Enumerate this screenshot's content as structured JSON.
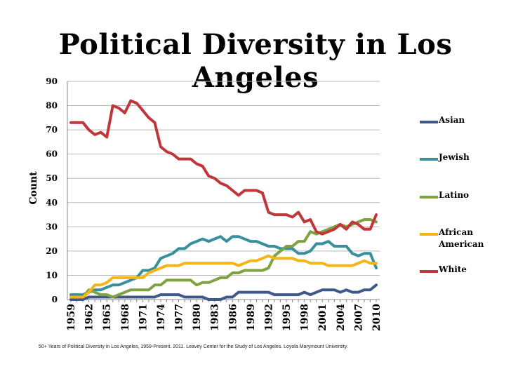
{
  "chart_data": {
    "type": "line",
    "title": "Political Diversity in Los Angeles",
    "xlabel": "",
    "ylabel": "Count",
    "ylim": [
      0,
      90
    ],
    "yticks": [
      0,
      10,
      20,
      30,
      40,
      50,
      60,
      70,
      80,
      90
    ],
    "x": [
      1959,
      1960,
      1961,
      1962,
      1963,
      1964,
      1965,
      1966,
      1967,
      1968,
      1969,
      1970,
      1971,
      1972,
      1973,
      1974,
      1975,
      1976,
      1977,
      1978,
      1979,
      1980,
      1981,
      1982,
      1983,
      1984,
      1985,
      1986,
      1987,
      1988,
      1989,
      1990,
      1991,
      1992,
      1993,
      1994,
      1995,
      1996,
      1997,
      1998,
      1999,
      2000,
      2001,
      2002,
      2003,
      2004,
      2005,
      2006,
      2007,
      2008,
      2009,
      2010
    ],
    "xtick_labels": [
      "1959",
      "1962",
      "1965",
      "1968",
      "1971",
      "1974",
      "1977",
      "1980",
      "1983",
      "1986",
      "1989",
      "1992",
      "1995",
      "1998",
      "2001",
      "2004",
      "2007",
      "2010"
    ],
    "grid": true,
    "legend_position": "right",
    "series": [
      {
        "name": "Asian",
        "color": "#3f5a8a",
        "values": [
          0,
          0,
          0,
          1,
          1,
          1,
          1,
          1,
          1,
          1,
          1,
          1,
          1,
          1,
          1,
          2,
          2,
          2,
          2,
          1,
          1,
          1,
          1,
          0,
          0,
          0,
          1,
          1,
          3,
          3,
          3,
          3,
          3,
          3,
          2,
          2,
          2,
          2,
          2,
          3,
          2,
          3,
          4,
          4,
          4,
          3,
          4,
          3,
          3,
          4,
          4,
          6
        ]
      },
      {
        "name": "Jewish",
        "color": "#3a8f9c",
        "values": [
          2,
          2,
          2,
          3,
          4,
          4,
          5,
          6,
          6,
          7,
          8,
          9,
          12,
          12,
          13,
          17,
          18,
          19,
          21,
          21,
          23,
          24,
          25,
          24,
          25,
          26,
          24,
          26,
          26,
          25,
          24,
          24,
          23,
          22,
          22,
          21,
          21,
          21,
          19,
          19,
          20,
          23,
          23,
          24,
          22,
          22,
          22,
          19,
          18,
          19,
          19,
          13
        ]
      },
      {
        "name": "Latino",
        "color": "#7fa242",
        "values": [
          1,
          1,
          1,
          4,
          3,
          2,
          2,
          1,
          2,
          3,
          4,
          4,
          4,
          4,
          6,
          6,
          8,
          8,
          8,
          8,
          8,
          6,
          7,
          7,
          8,
          9,
          9,
          11,
          11,
          12,
          12,
          12,
          12,
          13,
          18,
          20,
          22,
          22,
          24,
          24,
          28,
          27,
          28,
          29,
          30,
          31,
          30,
          31,
          32,
          33,
          33,
          32
        ]
      },
      {
        "name": "African American",
        "color": "#f5b516",
        "values": [
          1,
          1,
          1,
          3,
          6,
          6,
          7,
          9,
          9,
          9,
          9,
          9,
          9,
          11,
          12,
          13,
          14,
          14,
          14,
          15,
          15,
          15,
          15,
          15,
          15,
          15,
          15,
          15,
          14,
          15,
          16,
          16,
          17,
          18,
          17,
          17,
          17,
          17,
          16,
          16,
          15,
          15,
          15,
          14,
          14,
          14,
          14,
          14,
          15,
          16,
          15,
          15
        ]
      },
      {
        "name": "White",
        "color": "#c0373a",
        "values": [
          73,
          73,
          73,
          70,
          68,
          69,
          67,
          80,
          79,
          77,
          82,
          81,
          78,
          75,
          73,
          63,
          61,
          60,
          58,
          58,
          58,
          56,
          55,
          51,
          50,
          48,
          47,
          45,
          43,
          45,
          45,
          45,
          44,
          36,
          35,
          35,
          35,
          34,
          36,
          32,
          33,
          28,
          27,
          28,
          29,
          31,
          29,
          32,
          31,
          29,
          29,
          35
        ]
      }
    ]
  },
  "source_note": "50+ Years of Political Diversity in Los Angeles, 1959-Present. 2011. Leavey Center for the Study of Los Angeles.  Loyola Marymount University."
}
